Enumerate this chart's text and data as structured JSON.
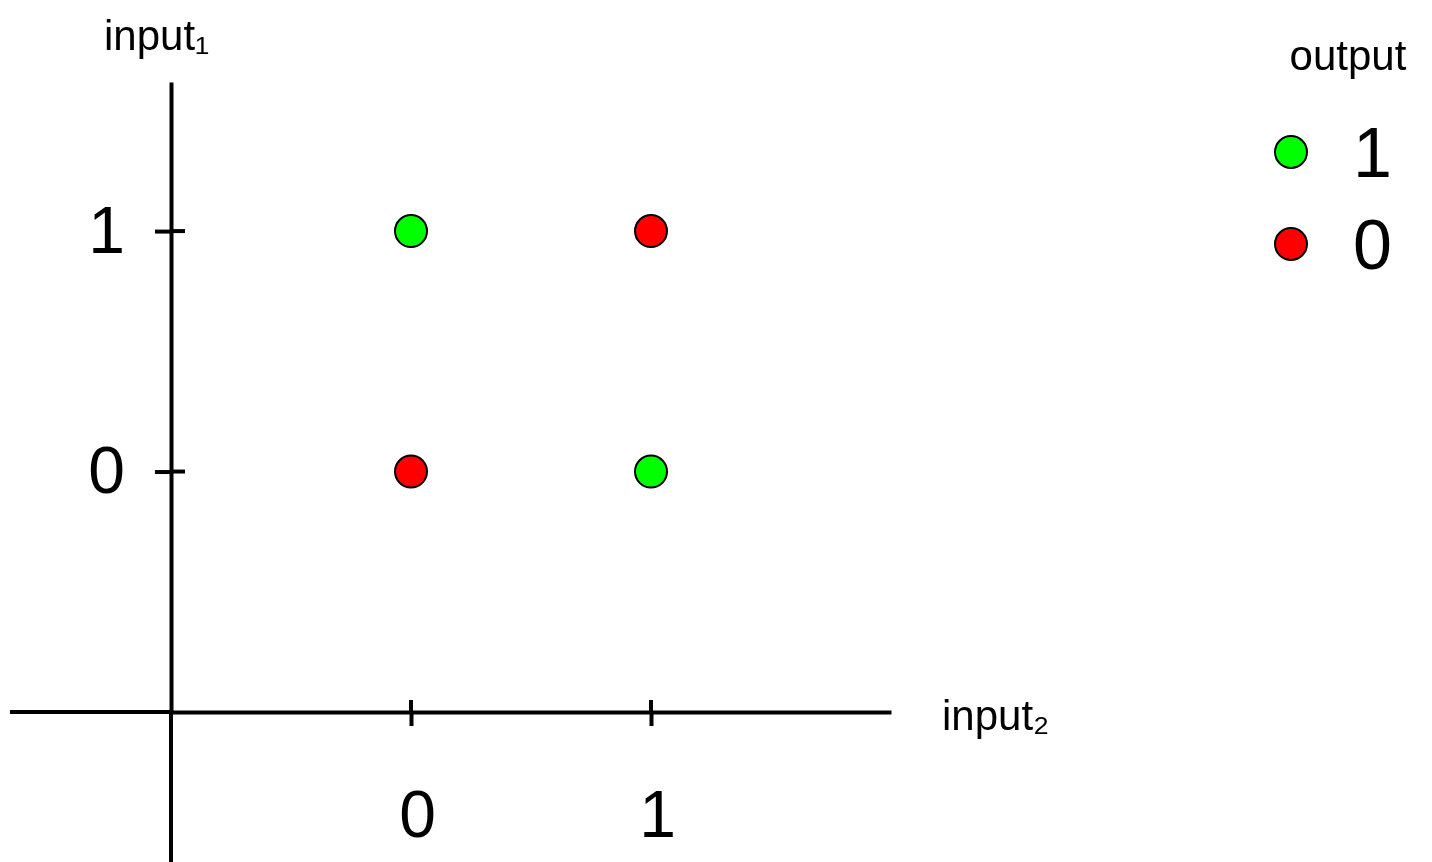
{
  "chart_data": {
    "type": "scatter",
    "xlabel": "input₂",
    "ylabel": "input₁",
    "legend_title": "output",
    "legend": "top right",
    "marker": "circle",
    "x": [
      0,
      1
    ],
    "xlim": [
      -1,
      2.0
    ],
    "ylim": [
      -1,
      1.62
    ],
    "xticks": [
      0,
      1
    ],
    "yticks": [
      0,
      1
    ],
    "series": [
      {
        "name": "1",
        "color": "#00ff00",
        "values": [
          1,
          0
        ]
      },
      {
        "name": "0",
        "color": "#ff0000",
        "values": [
          0,
          1
        ]
      }
    ]
  }
}
